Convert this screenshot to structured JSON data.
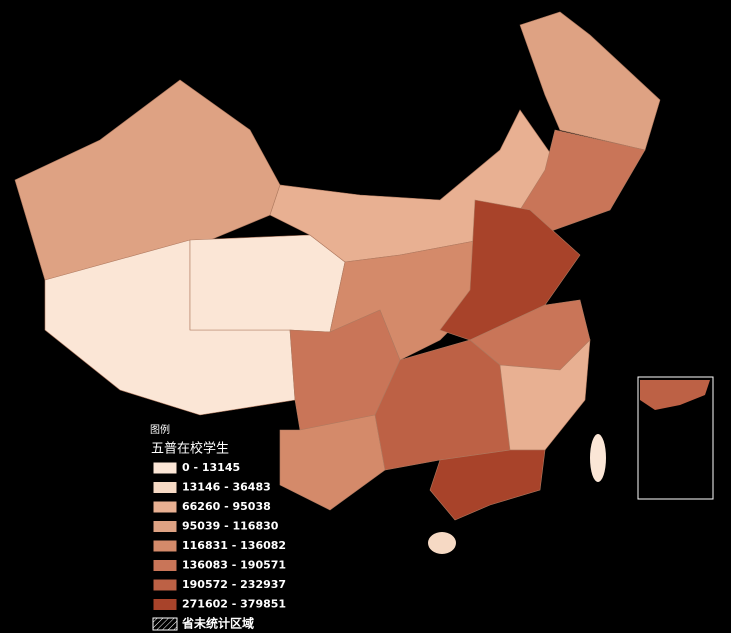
{
  "legend": {
    "title": "图例",
    "subtitle": "五普在校学生",
    "items": [
      {
        "label": "0 - 13145",
        "color": "#fbe6d6"
      },
      {
        "label": "13146 - 36483",
        "color": "#f6d9c4"
      },
      {
        "label": "66260 - 95038",
        "color": "#e8b092"
      },
      {
        "label": "95039 - 116830",
        "color": "#dea283"
      },
      {
        "label": "116831 - 136082",
        "color": "#d48a6a"
      },
      {
        "label": "136083 - 190571",
        "color": "#c97558"
      },
      {
        "label": "190572 - 232937",
        "color": "#bd6145"
      },
      {
        "label": "271602 - 379851",
        "color": "#a8432a"
      }
    ],
    "no_data": "省未统计区域"
  }
}
